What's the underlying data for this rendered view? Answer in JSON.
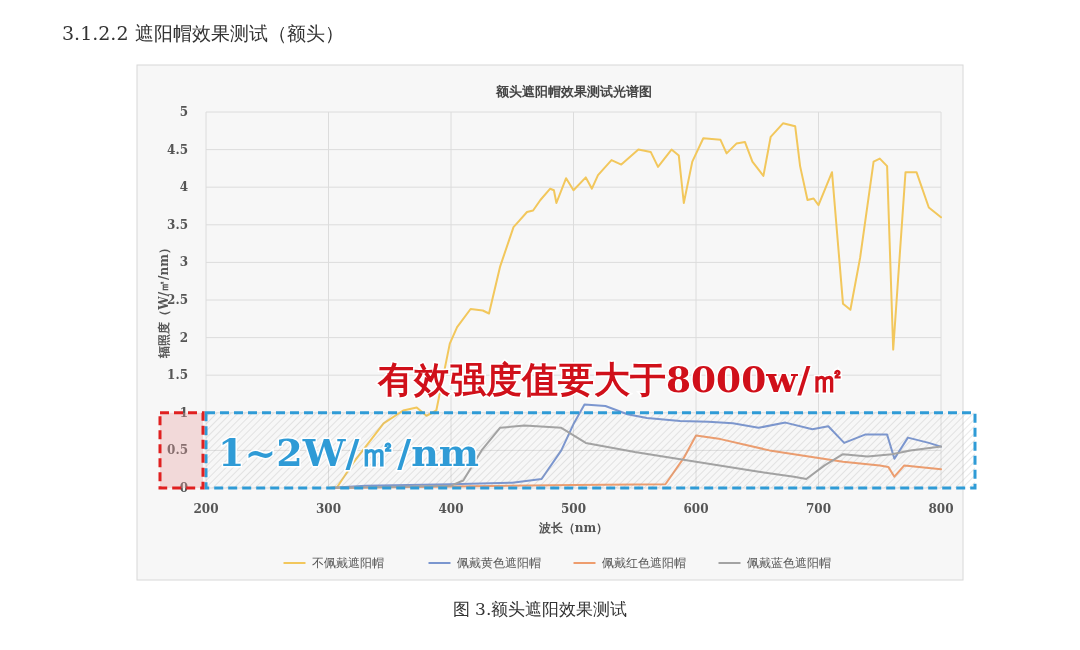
{
  "chart_data": {
    "type": "line",
    "title": "额头遮阳帽效果测试光谱图",
    "xlabel": "波长（nm）",
    "ylabel": "辐照度（W/㎡/nm）",
    "xlim": [
      200,
      800
    ],
    "xticks": [
      200,
      300,
      400,
      500,
      600,
      700,
      800
    ],
    "ylim": [
      0,
      5
    ],
    "yticks": [
      0,
      0.5,
      1,
      1.5,
      2,
      2.5,
      3,
      3.5,
      4,
      4.5,
      5
    ],
    "grid": true,
    "legend": "bottom",
    "line_style": "solid",
    "annotations": [
      "3.1.2.2 遮阳帽效果测试（额头）",
      "有效强度值要大于8000w/㎡",
      "图 3.额头遮阳效果测试"
    ],
    "bands": [
      {
        "axis": "y",
        "from": 0,
        "to": 1,
        "label": "1~2W/㎡/nm",
        "color": "#2f9bd6"
      }
    ],
    "series": [
      {
        "name": "不佩戴遮阳帽",
        "color": "#f2c75c",
        "x": [
          300,
          307,
          320,
          345,
          361,
          372,
          380,
          388,
          399,
          405,
          416,
          426,
          431,
          440,
          451,
          456,
          462,
          467,
          473,
          481,
          484,
          486,
          494,
          500,
          510,
          515,
          520,
          531,
          539,
          553,
          563,
          569,
          580,
          586,
          590,
          597,
          606,
          620,
          625,
          633,
          640,
          646,
          655,
          661,
          671,
          681,
          685,
          691,
          696,
          700,
          711,
          720,
          726,
          734,
          745,
          750,
          756,
          761,
          771,
          780,
          790,
          800
        ],
        "values": [
          0,
          0.01,
          0.33,
          0.86,
          1.03,
          1.07,
          0.96,
          1.03,
          1.92,
          2.14,
          2.38,
          2.36,
          2.32,
          2.94,
          3.47,
          3.56,
          3.67,
          3.69,
          3.83,
          3.98,
          3.96,
          3.79,
          4.12,
          3.96,
          4.13,
          3.98,
          4.16,
          4.36,
          4.3,
          4.5,
          4.47,
          4.27,
          4.5,
          4.42,
          3.79,
          4.34,
          4.65,
          4.63,
          4.45,
          4.58,
          4.6,
          4.34,
          4.15,
          4.67,
          4.85,
          4.81,
          4.28,
          3.83,
          3.85,
          3.76,
          4.2,
          2.45,
          2.37,
          3.06,
          4.34,
          4.38,
          4.28,
          1.84,
          4.2,
          4.2,
          3.73,
          3.6
        ]
      },
      {
        "name": "佩戴黄色遮阳帽",
        "color": "#7b96cf",
        "x": [
          300,
          330,
          400,
          450,
          474,
          490,
          500,
          509,
          526,
          544,
          560,
          587,
          610,
          630,
          651,
          673,
          695,
          708,
          721,
          738,
          756,
          762,
          773,
          790,
          800
        ],
        "values": [
          0,
          0.03,
          0.05,
          0.07,
          0.12,
          0.5,
          0.85,
          1.11,
          1.09,
          0.98,
          0.93,
          0.89,
          0.88,
          0.86,
          0.8,
          0.87,
          0.78,
          0.82,
          0.6,
          0.71,
          0.71,
          0.39,
          0.67,
          0.6,
          0.55
        ]
      },
      {
        "name": "佩戴红色遮阳帽",
        "color": "#ee9d6e",
        "x": [
          300,
          400,
          500,
          575,
          590,
          600,
          620,
          660,
          700,
          720,
          750,
          757,
          762,
          770,
          800
        ],
        "values": [
          0,
          0.02,
          0.04,
          0.05,
          0.4,
          0.7,
          0.65,
          0.5,
          0.4,
          0.35,
          0.3,
          0.28,
          0.15,
          0.3,
          0.25
        ]
      },
      {
        "name": "佩戴蓝色遮阳帽",
        "color": "#a3a3a3",
        "x": [
          300,
          400,
          410,
          425,
          440,
          460,
          490,
          510,
          550,
          600,
          650,
          680,
          690,
          705,
          720,
          740,
          760,
          775,
          800
        ],
        "values": [
          0,
          0.03,
          0.1,
          0.5,
          0.8,
          0.83,
          0.8,
          0.6,
          0.48,
          0.35,
          0.22,
          0.15,
          0.12,
          0.3,
          0.45,
          0.42,
          0.45,
          0.5,
          0.55
        ]
      }
    ]
  }
}
